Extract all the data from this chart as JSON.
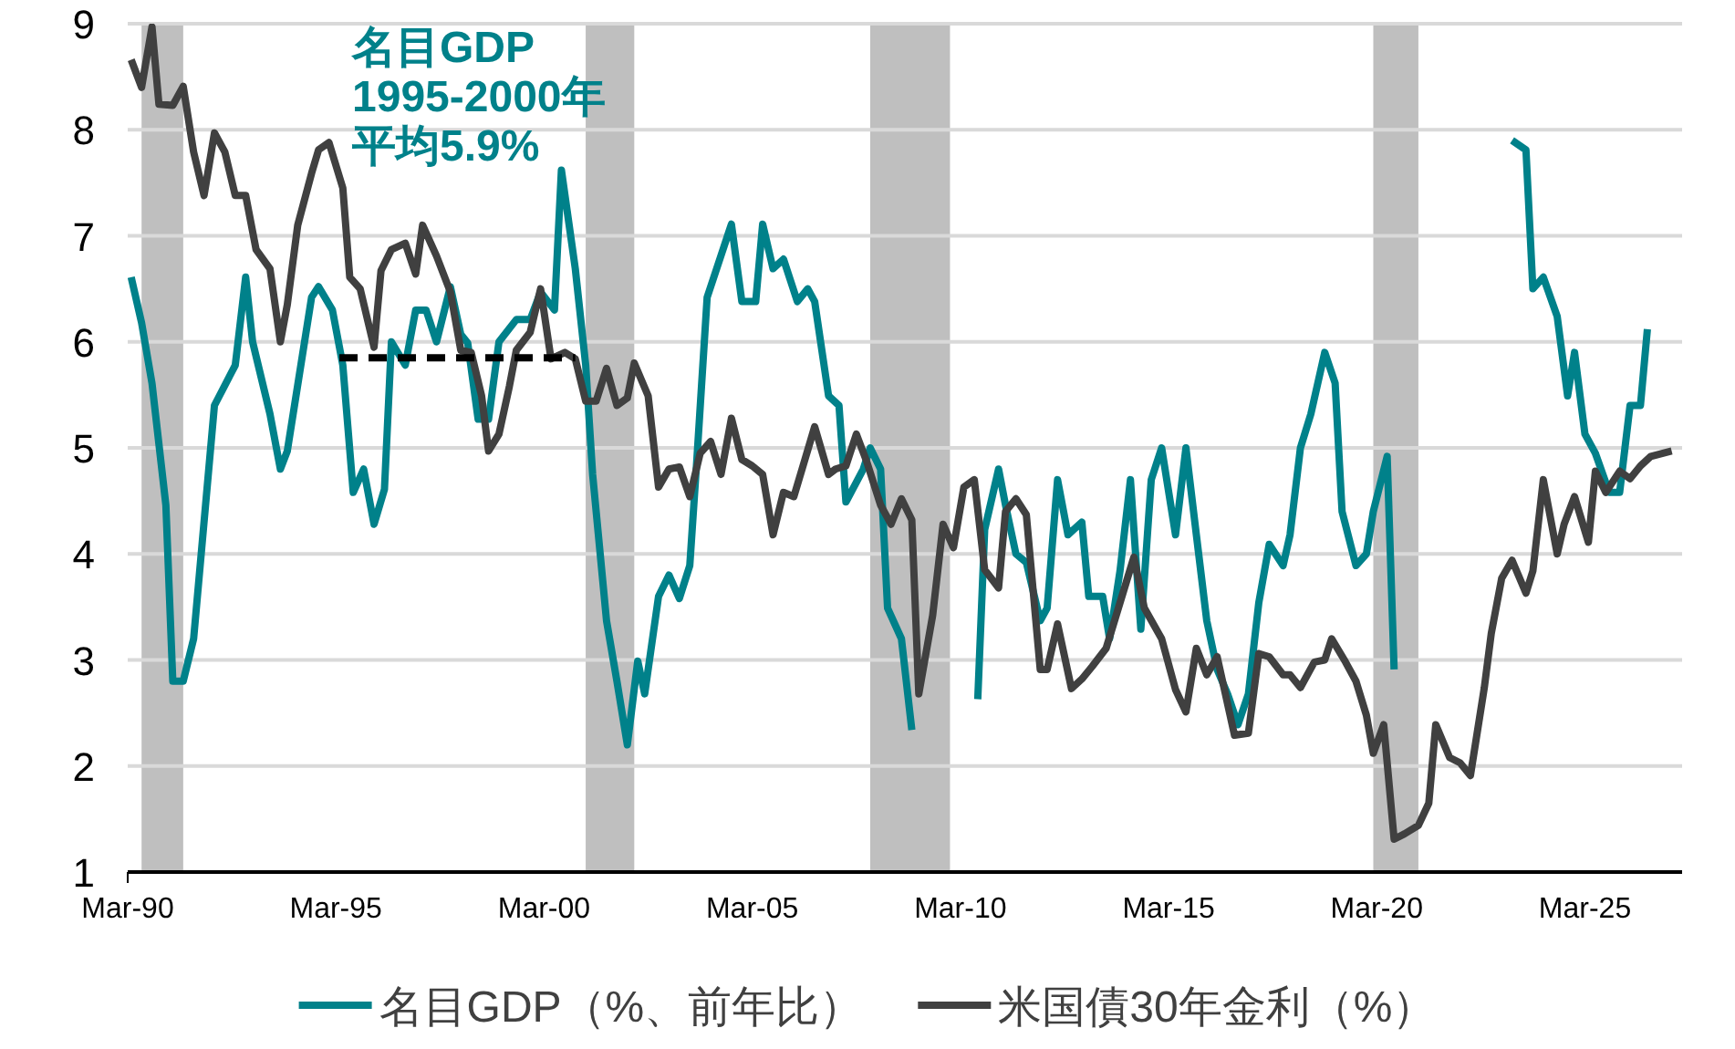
{
  "chart_data": {
    "type": "line",
    "xlim": [
      "1990-03",
      "2027-07"
    ],
    "xticks": [
      {
        "value": "1990-03",
        "label": "Mar-90"
      },
      {
        "value": "1995-03",
        "label": "Mar-95"
      },
      {
        "value": "2000-03",
        "label": "Mar-00"
      },
      {
        "value": "2005-03",
        "label": "Mar-05"
      },
      {
        "value": "2010-03",
        "label": "Mar-10"
      },
      {
        "value": "2015-03",
        "label": "Mar-15"
      },
      {
        "value": "2020-03",
        "label": "Mar-20"
      },
      {
        "value": "2025-03",
        "label": "Mar-25"
      }
    ],
    "ylim": [
      1,
      9
    ],
    "yticks": [
      1,
      2,
      3,
      4,
      5,
      6,
      7,
      8,
      9
    ],
    "grid": "y",
    "legend": "bottom",
    "line_style": "solid",
    "marker": "none",
    "annotations": [
      "名目GDP",
      "1995-2000年",
      "平均5.9%"
    ],
    "bands": [
      {
        "axis": "x",
        "from": "1990-07",
        "to": "1991-07",
        "color": "#bfbfbf"
      },
      {
        "axis": "x",
        "from": "2001-03",
        "to": "2002-05",
        "color": "#bfbfbf"
      },
      {
        "axis": "x",
        "from": "2008-01",
        "to": "2009-12",
        "color": "#bfbfbf"
      },
      {
        "axis": "x",
        "from": "2020-02",
        "to": "2021-03",
        "color": "#bfbfbf"
      }
    ],
    "series": [
      {
        "name": "名目GDP（%、前年比）",
        "color": "#00818a",
        "x": [
          "1990-04",
          "1990-07",
          "1990-10",
          "1991-02",
          "1991-04",
          "1991-07",
          "1991-10",
          "1992-04",
          "1992-10",
          "1993-01",
          "1993-03",
          "1993-08",
          "1993-11",
          "1994-01",
          "1994-08",
          "1994-10",
          "1995-02",
          "1995-05",
          "1995-08",
          "1995-11",
          "1996-02",
          "1996-05",
          "1996-07",
          "1996-11",
          "1997-02",
          "1997-05",
          "1997-08",
          "1997-12",
          "1998-03",
          "1998-05",
          "1998-08",
          "1998-11",
          "1999-02",
          "1999-07",
          "1999-11",
          "2000-02",
          "2000-06",
          "2000-08",
          "2000-12",
          "2001-03",
          "2001-05",
          "2001-09",
          "2001-12",
          "2002-03",
          "2002-06",
          "2002-08",
          "2002-12",
          "2003-03",
          "2003-06",
          "2003-09",
          "2003-11",
          "2004-02",
          "2004-09",
          "2004-12",
          "2005-04",
          "2005-06",
          "2005-09",
          "2005-12",
          "2006-04",
          "2006-07",
          "2006-09",
          "2007-01",
          "2007-04",
          "2007-06",
          "2007-11",
          "2008-01",
          "2008-04",
          "2008-06",
          "2008-10",
          "2009-01",
          "2010-08",
          "2010-10",
          "2011-02",
          "2011-04",
          "2011-07",
          "2011-10",
          "2012-02",
          "2012-04",
          "2012-07",
          "2012-10",
          "2013-02",
          "2013-04",
          "2013-08",
          "2013-10",
          "2014-01",
          "2014-04",
          "2014-07",
          "2014-10",
          "2015-01",
          "2015-05",
          "2015-08",
          "2015-11",
          "2016-02",
          "2016-05",
          "2016-08",
          "2016-11",
          "2017-02",
          "2017-05",
          "2017-08",
          "2017-12",
          "2018-02",
          "2018-05",
          "2018-08",
          "2018-12",
          "2019-03",
          "2019-05",
          "2019-09",
          "2019-12",
          "2020-02",
          "2020-06",
          "2020-08",
          "2023-06",
          "2023-10",
          "2023-12",
          "2024-03",
          "2024-07",
          "2024-10",
          "2024-12",
          "2025-03",
          "2025-06",
          "2025-10",
          "2026-01",
          "2026-04",
          "2026-07",
          "2026-09"
        ],
        "values": [
          6.61,
          6.18,
          5.61,
          4.46,
          2.8,
          2.8,
          3.2,
          5.4,
          5.78,
          6.61,
          6.0,
          5.32,
          4.8,
          4.97,
          6.42,
          6.52,
          6.3,
          5.78,
          4.58,
          4.8,
          4.28,
          4.61,
          6.0,
          5.78,
          6.3,
          6.3,
          6.0,
          6.52,
          6.07,
          5.99,
          5.27,
          5.27,
          6.0,
          6.21,
          6.21,
          6.47,
          6.3,
          7.62,
          6.69,
          5.78,
          4.75,
          3.37,
          2.8,
          2.2,
          2.99,
          2.68,
          3.6,
          3.8,
          3.58,
          3.89,
          4.87,
          6.42,
          7.11,
          6.38,
          6.38,
          7.11,
          6.69,
          6.78,
          6.38,
          6.5,
          6.38,
          5.49,
          5.4,
          4.49,
          4.8,
          5.0,
          4.8,
          3.49,
          3.2,
          2.34,
          2.63,
          4.23,
          4.8,
          4.46,
          4.0,
          3.92,
          3.37,
          3.49,
          4.7,
          4.18,
          4.3,
          3.6,
          3.6,
          3.2,
          3.84,
          4.7,
          3.29,
          4.7,
          5.0,
          4.18,
          5.0,
          4.18,
          3.37,
          2.91,
          2.68,
          2.39,
          2.68,
          3.54,
          4.09,
          3.89,
          4.18,
          5.0,
          5.32,
          5.9,
          5.61,
          4.4,
          3.89,
          4.0,
          4.4,
          4.92,
          2.91,
          7.9,
          7.81,
          6.5,
          6.61,
          6.24,
          5.49,
          5.9,
          5.13,
          4.95,
          4.58,
          4.58,
          5.4,
          5.4,
          6.12
        ]
      },
      {
        "name": "米国債30年金利（%）",
        "color": "#404040",
        "x": [
          "1990-04",
          "1990-07",
          "1990-10",
          "1990-12",
          "1991-04",
          "1991-07",
          "1991-10",
          "1992-01",
          "1992-04",
          "1992-07",
          "1992-10",
          "1993-01",
          "1993-04",
          "1993-08",
          "1993-11",
          "1994-01",
          "1994-04",
          "1994-08",
          "1994-10",
          "1995-01",
          "1995-05",
          "1995-07",
          "1995-10",
          "1996-02",
          "1996-04",
          "1996-07",
          "1996-11",
          "1997-02",
          "1997-04",
          "1997-08",
          "1997-12",
          "1998-03",
          "1998-06",
          "1998-09",
          "1998-11",
          "1999-02",
          "1999-05",
          "1999-07",
          "1999-11",
          "2000-02",
          "2000-05",
          "2000-09",
          "2000-12",
          "2001-03",
          "2001-06",
          "2001-09",
          "2001-12",
          "2002-03",
          "2002-05",
          "2002-09",
          "2002-12",
          "2003-03",
          "2003-06",
          "2003-09",
          "2003-12",
          "2004-03",
          "2004-06",
          "2004-09",
          "2004-12",
          "2005-03",
          "2005-06",
          "2005-09",
          "2005-12",
          "2006-03",
          "2006-06",
          "2006-09",
          "2007-01",
          "2007-03",
          "2007-06",
          "2007-09",
          "2007-12",
          "2008-04",
          "2008-07",
          "2008-10",
          "2009-01",
          "2009-03",
          "2009-07",
          "2009-10",
          "2010-01",
          "2010-04",
          "2010-07",
          "2010-10",
          "2011-02",
          "2011-04",
          "2011-07",
          "2011-10",
          "2012-02",
          "2012-04",
          "2012-07",
          "2012-11",
          "2013-02",
          "2013-05",
          "2013-09",
          "2014-01",
          "2014-05",
          "2014-08",
          "2015-01",
          "2015-05",
          "2015-08",
          "2015-11",
          "2016-02",
          "2016-05",
          "2016-10",
          "2017-02",
          "2017-05",
          "2017-08",
          "2017-12",
          "2018-02",
          "2018-05",
          "2018-09",
          "2018-12",
          "2019-02",
          "2019-06",
          "2019-09",
          "2019-12",
          "2020-02",
          "2020-05",
          "2020-08",
          "2020-11",
          "2021-03",
          "2021-06",
          "2021-08",
          "2021-12",
          "2022-03",
          "2022-06",
          "2022-10",
          "2022-12",
          "2023-03",
          "2023-06",
          "2023-10",
          "2023-12",
          "2024-03",
          "2024-07",
          "2024-09",
          "2024-12",
          "2025-04",
          "2025-06",
          "2025-09",
          "2026-01",
          "2026-04",
          "2026-07",
          "2026-10",
          "2027-04"
        ],
        "values": [
          8.66,
          8.4,
          8.97,
          8.24,
          8.23,
          8.41,
          7.79,
          7.38,
          7.97,
          7.79,
          7.38,
          7.38,
          6.87,
          6.69,
          6.0,
          6.35,
          7.1,
          7.59,
          7.81,
          7.88,
          7.45,
          6.61,
          6.5,
          5.95,
          6.67,
          6.87,
          6.93,
          6.64,
          7.1,
          6.81,
          6.47,
          5.92,
          5.9,
          5.49,
          4.97,
          5.13,
          5.58,
          5.92,
          6.09,
          6.5,
          5.84,
          5.9,
          5.84,
          5.44,
          5.44,
          5.75,
          5.4,
          5.47,
          5.8,
          5.49,
          4.63,
          4.8,
          4.82,
          4.54,
          4.95,
          5.06,
          4.75,
          5.28,
          4.89,
          4.83,
          4.75,
          4.18,
          4.58,
          4.54,
          4.87,
          5.2,
          4.75,
          4.8,
          4.83,
          5.13,
          4.87,
          4.46,
          4.28,
          4.52,
          4.32,
          2.68,
          3.42,
          4.28,
          4.06,
          4.63,
          4.7,
          3.85,
          3.68,
          4.4,
          4.52,
          4.37,
          2.91,
          2.91,
          3.34,
          2.73,
          2.82,
          2.94,
          3.11,
          3.54,
          3.97,
          3.49,
          3.2,
          2.72,
          2.51,
          3.11,
          2.86,
          3.03,
          2.29,
          2.31,
          3.06,
          3.03,
          2.86,
          2.86,
          2.74,
          2.98,
          3.0,
          3.2,
          2.98,
          2.8,
          2.48,
          2.12,
          2.39,
          1.31,
          1.36,
          1.44,
          1.65,
          2.39,
          2.08,
          2.03,
          1.91,
          2.74,
          3.25,
          3.77,
          3.94,
          3.63,
          3.84,
          4.7,
          4.0,
          4.28,
          4.54,
          4.11,
          4.78,
          4.58,
          4.78,
          4.71,
          4.83,
          4.92,
          4.97
        ]
      },
      {
        "type": "line",
        "color": "#000000",
        "line_style": "dashed",
        "x": [
          "1995-04",
          "2000-12"
        ],
        "values": [
          5.85,
          5.85
        ]
      }
    ]
  }
}
